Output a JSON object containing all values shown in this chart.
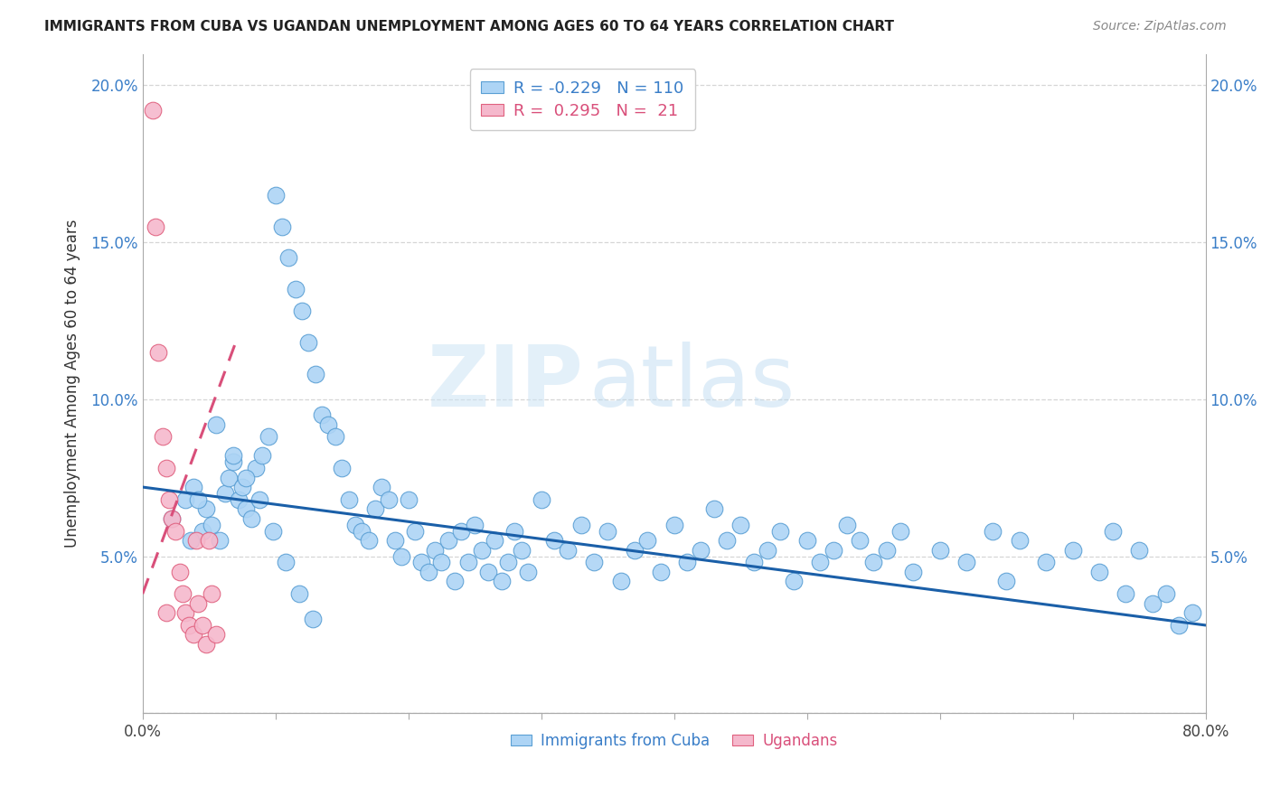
{
  "title": "IMMIGRANTS FROM CUBA VS UGANDAN UNEMPLOYMENT AMONG AGES 60 TO 64 YEARS CORRELATION CHART",
  "source_text": "Source: ZipAtlas.com",
  "ylabel": "Unemployment Among Ages 60 to 64 years",
  "xlim": [
    0,
    0.8
  ],
  "ylim": [
    0,
    0.21
  ],
  "x_ticks": [
    0.0,
    0.1,
    0.2,
    0.3,
    0.4,
    0.5,
    0.6,
    0.7,
    0.8
  ],
  "y_ticks": [
    0.0,
    0.05,
    0.1,
    0.15,
    0.2
  ],
  "legend_r_blue": "-0.229",
  "legend_n_blue": "110",
  "legend_r_pink": "0.295",
  "legend_n_pink": "21",
  "watermark_zip": "ZIP",
  "watermark_atlas": "atlas",
  "blue_color": "#add4f5",
  "blue_edge": "#5a9fd4",
  "pink_color": "#f5b8cc",
  "pink_edge": "#e0607e",
  "line_blue_color": "#1a5fa8",
  "line_pink_color": "#d94f7a",
  "blue_scatter_x": [
    0.022,
    0.032,
    0.038,
    0.045,
    0.048,
    0.052,
    0.058,
    0.062,
    0.065,
    0.068,
    0.072,
    0.075,
    0.078,
    0.082,
    0.085,
    0.09,
    0.095,
    0.1,
    0.105,
    0.11,
    0.115,
    0.12,
    0.125,
    0.13,
    0.135,
    0.14,
    0.145,
    0.15,
    0.155,
    0.16,
    0.165,
    0.17,
    0.175,
    0.18,
    0.185,
    0.19,
    0.195,
    0.2,
    0.205,
    0.21,
    0.215,
    0.22,
    0.225,
    0.23,
    0.235,
    0.24,
    0.245,
    0.25,
    0.255,
    0.26,
    0.265,
    0.27,
    0.275,
    0.28,
    0.285,
    0.29,
    0.3,
    0.31,
    0.32,
    0.33,
    0.34,
    0.35,
    0.36,
    0.37,
    0.38,
    0.39,
    0.4,
    0.41,
    0.42,
    0.43,
    0.44,
    0.45,
    0.46,
    0.47,
    0.48,
    0.49,
    0.5,
    0.51,
    0.52,
    0.53,
    0.54,
    0.55,
    0.56,
    0.57,
    0.58,
    0.6,
    0.62,
    0.64,
    0.65,
    0.66,
    0.68,
    0.7,
    0.72,
    0.73,
    0.74,
    0.75,
    0.76,
    0.77,
    0.78,
    0.79,
    0.036,
    0.042,
    0.055,
    0.068,
    0.078,
    0.088,
    0.098,
    0.108,
    0.118,
    0.128
  ],
  "blue_scatter_y": [
    0.062,
    0.068,
    0.072,
    0.058,
    0.065,
    0.06,
    0.055,
    0.07,
    0.075,
    0.08,
    0.068,
    0.072,
    0.065,
    0.062,
    0.078,
    0.082,
    0.088,
    0.165,
    0.155,
    0.145,
    0.135,
    0.128,
    0.118,
    0.108,
    0.095,
    0.092,
    0.088,
    0.078,
    0.068,
    0.06,
    0.058,
    0.055,
    0.065,
    0.072,
    0.068,
    0.055,
    0.05,
    0.068,
    0.058,
    0.048,
    0.045,
    0.052,
    0.048,
    0.055,
    0.042,
    0.058,
    0.048,
    0.06,
    0.052,
    0.045,
    0.055,
    0.042,
    0.048,
    0.058,
    0.052,
    0.045,
    0.068,
    0.055,
    0.052,
    0.06,
    0.048,
    0.058,
    0.042,
    0.052,
    0.055,
    0.045,
    0.06,
    0.048,
    0.052,
    0.065,
    0.055,
    0.06,
    0.048,
    0.052,
    0.058,
    0.042,
    0.055,
    0.048,
    0.052,
    0.06,
    0.055,
    0.048,
    0.052,
    0.058,
    0.045,
    0.052,
    0.048,
    0.058,
    0.042,
    0.055,
    0.048,
    0.052,
    0.045,
    0.058,
    0.038,
    0.052,
    0.035,
    0.038,
    0.028,
    0.032,
    0.055,
    0.068,
    0.092,
    0.082,
    0.075,
    0.068,
    0.058,
    0.048,
    0.038,
    0.03
  ],
  "pink_scatter_x": [
    0.008,
    0.01,
    0.012,
    0.015,
    0.018,
    0.02,
    0.022,
    0.025,
    0.028,
    0.03,
    0.032,
    0.035,
    0.038,
    0.04,
    0.042,
    0.045,
    0.048,
    0.05,
    0.052,
    0.055,
    0.018
  ],
  "pink_scatter_y": [
    0.192,
    0.155,
    0.115,
    0.088,
    0.078,
    0.068,
    0.062,
    0.058,
    0.045,
    0.038,
    0.032,
    0.028,
    0.025,
    0.055,
    0.035,
    0.028,
    0.022,
    0.055,
    0.038,
    0.025,
    0.032
  ],
  "blue_trend_x": [
    0.0,
    0.8
  ],
  "blue_trend_y": [
    0.072,
    0.028
  ],
  "pink_trend_x": [
    0.0,
    0.07
  ],
  "pink_trend_y": [
    0.038,
    0.118
  ],
  "figsize": [
    14.06,
    8.92
  ],
  "dpi": 100
}
